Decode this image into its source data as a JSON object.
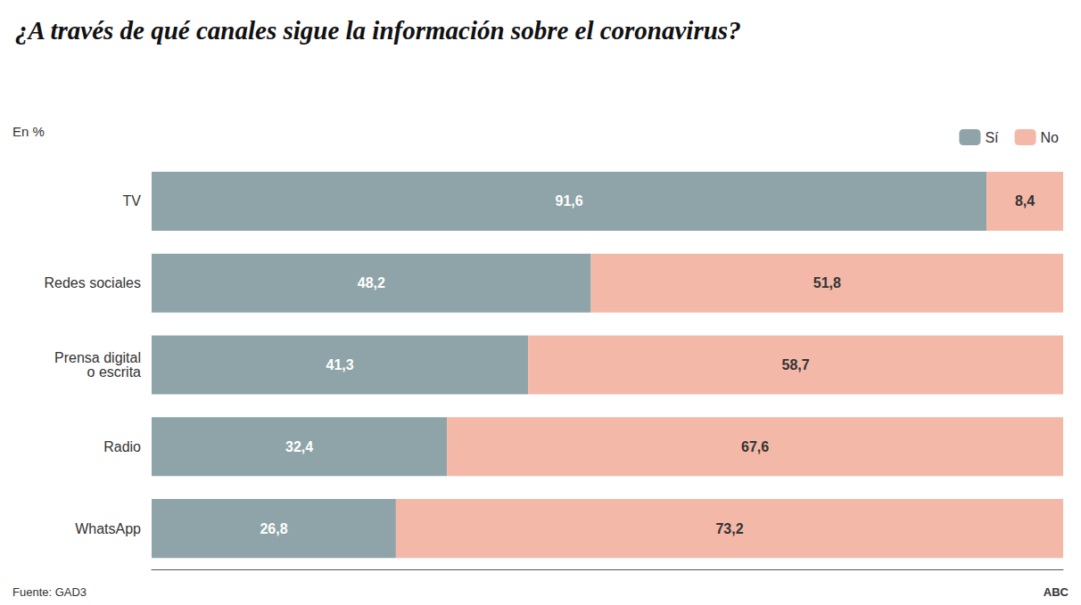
{
  "chart_data": {
    "type": "bar",
    "orientation": "horizontal",
    "stacked": true,
    "title": "¿A través de qué canales sigue la información sobre el coronavirus?",
    "subtitle": "En %",
    "categories": [
      "TV",
      "Redes sociales",
      "Prensa digital\no escrita",
      "Radio",
      "WhatsApp"
    ],
    "series": [
      {
        "name": "Sí",
        "color": "#8EA4A8",
        "values": [
          91.6,
          48.2,
          41.3,
          32.4,
          26.8
        ],
        "value_labels": [
          "91,6",
          "48,2",
          "41,3",
          "32,4",
          "26,8"
        ]
      },
      {
        "name": "No",
        "color": "#F4B8A8",
        "values": [
          8.4,
          51.8,
          58.7,
          67.6,
          73.2
        ],
        "value_labels": [
          "8,4",
          "51,8",
          "58,7",
          "67,6",
          "73,2"
        ]
      }
    ],
    "xlim": [
      0,
      100
    ],
    "data_labels": true,
    "tick_labels": "y",
    "grid": false,
    "legend": "top right",
    "annotations": [
      "Fuente: GAD3",
      "ABC"
    ]
  }
}
